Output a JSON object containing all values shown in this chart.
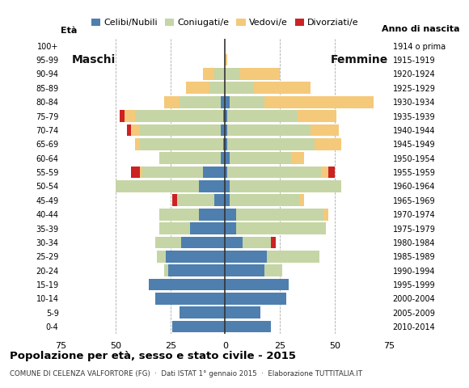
{
  "age_groups": [
    "0-4",
    "5-9",
    "10-14",
    "15-19",
    "20-24",
    "25-29",
    "30-34",
    "35-39",
    "40-44",
    "45-49",
    "50-54",
    "55-59",
    "60-64",
    "65-69",
    "70-74",
    "75-79",
    "80-84",
    "85-89",
    "90-94",
    "95-99",
    "100+"
  ],
  "birth_years": [
    "2010-2014",
    "2005-2009",
    "2000-2004",
    "1995-1999",
    "1990-1994",
    "1985-1989",
    "1980-1984",
    "1975-1979",
    "1970-1974",
    "1965-1969",
    "1960-1964",
    "1955-1959",
    "1950-1954",
    "1945-1949",
    "1940-1944",
    "1935-1939",
    "1930-1934",
    "1925-1929",
    "1920-1924",
    "1915-1919",
    "1914 o prima"
  ],
  "male_celibe": [
    24,
    21,
    32,
    35,
    26,
    27,
    20,
    16,
    12,
    5,
    12,
    10,
    2,
    1,
    2,
    1,
    2,
    0,
    0,
    0,
    0
  ],
  "male_coniugato": [
    0,
    0,
    0,
    0,
    2,
    4,
    12,
    14,
    18,
    17,
    38,
    28,
    28,
    38,
    37,
    40,
    19,
    7,
    5,
    0,
    0
  ],
  "male_vedovo": [
    0,
    0,
    0,
    0,
    0,
    0,
    0,
    0,
    0,
    0,
    0,
    1,
    0,
    2,
    4,
    5,
    7,
    11,
    5,
    0,
    0
  ],
  "male_divorziato": [
    0,
    0,
    0,
    0,
    0,
    0,
    0,
    0,
    0,
    2,
    0,
    4,
    0,
    0,
    2,
    2,
    0,
    0,
    0,
    0,
    0
  ],
  "female_nubile": [
    21,
    16,
    28,
    29,
    18,
    19,
    8,
    5,
    5,
    2,
    2,
    1,
    2,
    1,
    1,
    1,
    2,
    0,
    0,
    0,
    0
  ],
  "female_coniugata": [
    0,
    0,
    0,
    0,
    8,
    24,
    13,
    41,
    40,
    32,
    51,
    43,
    28,
    40,
    38,
    32,
    16,
    13,
    7,
    0,
    0
  ],
  "female_vedova": [
    0,
    0,
    0,
    0,
    0,
    0,
    0,
    0,
    2,
    2,
    0,
    3,
    6,
    12,
    13,
    18,
    50,
    26,
    18,
    1,
    0
  ],
  "female_divorziata": [
    0,
    0,
    0,
    0,
    0,
    0,
    2,
    0,
    0,
    0,
    0,
    3,
    0,
    0,
    0,
    0,
    0,
    0,
    0,
    0,
    0
  ],
  "colors": {
    "celibe": "#4e7faf",
    "coniugato": "#c5d5a5",
    "vedovo": "#f5c97a",
    "divorziato": "#cc2222"
  },
  "title": "Popolazione per età, sesso e stato civile - 2015",
  "subtitle": "COMUNE DI CELENZA VALFORTORE (FG)  ·  Dati ISTAT 1° gennaio 2015  ·  Elaborazione TUTTITALIA.IT",
  "xlim": 75,
  "background_color": "#ffffff",
  "grid_color": "#aaaaaa",
  "legend_labels": [
    "Celibi/Nubili",
    "Coniugati/e",
    "Vedovi/e",
    "Divorziati/e"
  ]
}
